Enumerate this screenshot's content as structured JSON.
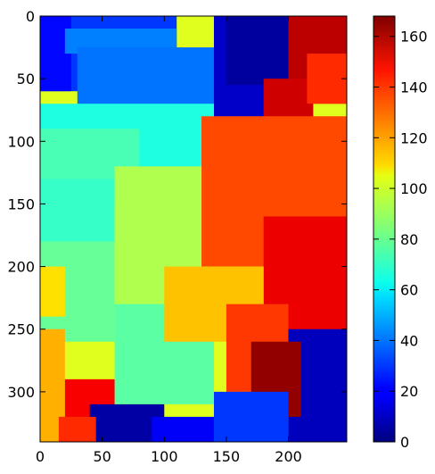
{
  "chart_data": {
    "type": "heatmap",
    "title": "",
    "xlabel": "",
    "ylabel": "",
    "x_range": [
      0,
      247
    ],
    "y_range": [
      340,
      0
    ],
    "x_ticks": [
      0,
      50,
      100,
      150,
      200
    ],
    "y_ticks": [
      0,
      50,
      100,
      150,
      200,
      250,
      300
    ],
    "colormap": "jet",
    "colorbar": {
      "range": [
        0,
        168
      ],
      "ticks": [
        0,
        20,
        40,
        60,
        80,
        100,
        120,
        140,
        160
      ]
    },
    "regions": [
      {
        "x": [
          0,
          247
        ],
        "y": [
          0,
          340
        ],
        "value": 100
      },
      {
        "x": [
          0,
          110
        ],
        "y": [
          0,
          60
        ],
        "value": 30
      },
      {
        "x": [
          0,
          25
        ],
        "y": [
          0,
          60
        ],
        "value": 22
      },
      {
        "x": [
          20,
          110
        ],
        "y": [
          10,
          30
        ],
        "value": 42
      },
      {
        "x": [
          30,
          180
        ],
        "y": [
          25,
          95
        ],
        "value": 40
      },
      {
        "x": [
          140,
          200
        ],
        "y": [
          0,
          110
        ],
        "value": 12
      },
      {
        "x": [
          150,
          215
        ],
        "y": [
          0,
          55
        ],
        "value": 5
      },
      {
        "x": [
          200,
          247
        ],
        "y": [
          0,
          70
        ],
        "value": 158
      },
      {
        "x": [
          180,
          220
        ],
        "y": [
          50,
          110
        ],
        "value": 155
      },
      {
        "x": [
          215,
          247
        ],
        "y": [
          30,
          70
        ],
        "value": 140
      },
      {
        "x": [
          0,
          140
        ],
        "y": [
          70,
          130
        ],
        "value": 68
      },
      {
        "x": [
          0,
          80
        ],
        "y": [
          90,
          150
        ],
        "value": 75
      },
      {
        "x": [
          0,
          60
        ],
        "y": [
          130,
          180
        ],
        "value": 72
      },
      {
        "x": [
          60,
          170
        ],
        "y": [
          120,
          240
        ],
        "value": 92
      },
      {
        "x": [
          0,
          60
        ],
        "y": [
          180,
          260
        ],
        "value": 80
      },
      {
        "x": [
          0,
          20
        ],
        "y": [
          200,
          240
        ],
        "value": 110
      },
      {
        "x": [
          60,
          140
        ],
        "y": [
          230,
          310
        ],
        "value": 78
      },
      {
        "x": [
          130,
          247
        ],
        "y": [
          80,
          200
        ],
        "value": 135
      },
      {
        "x": [
          180,
          247
        ],
        "y": [
          160,
          260
        ],
        "value": 150
      },
      {
        "x": [
          100,
          180
        ],
        "y": [
          200,
          260
        ],
        "value": 115
      },
      {
        "x": [
          150,
          200
        ],
        "y": [
          230,
          300
        ],
        "value": 138
      },
      {
        "x": [
          200,
          247
        ],
        "y": [
          250,
          340
        ],
        "value": 10
      },
      {
        "x": [
          170,
          210
        ],
        "y": [
          260,
          320
        ],
        "value": 165
      },
      {
        "x": [
          0,
          20
        ],
        "y": [
          250,
          340
        ],
        "value": 118
      },
      {
        "x": [
          20,
          60
        ],
        "y": [
          290,
          330
        ],
        "value": 148
      },
      {
        "x": [
          40,
          100
        ],
        "y": [
          310,
          340
        ],
        "value": 6
      },
      {
        "x": [
          90,
          140
        ],
        "y": [
          320,
          340
        ],
        "value": 20
      },
      {
        "x": [
          140,
          200
        ],
        "y": [
          300,
          340
        ],
        "value": 30
      },
      {
        "x": [
          15,
          45
        ],
        "y": [
          320,
          340
        ],
        "value": 140
      }
    ]
  }
}
